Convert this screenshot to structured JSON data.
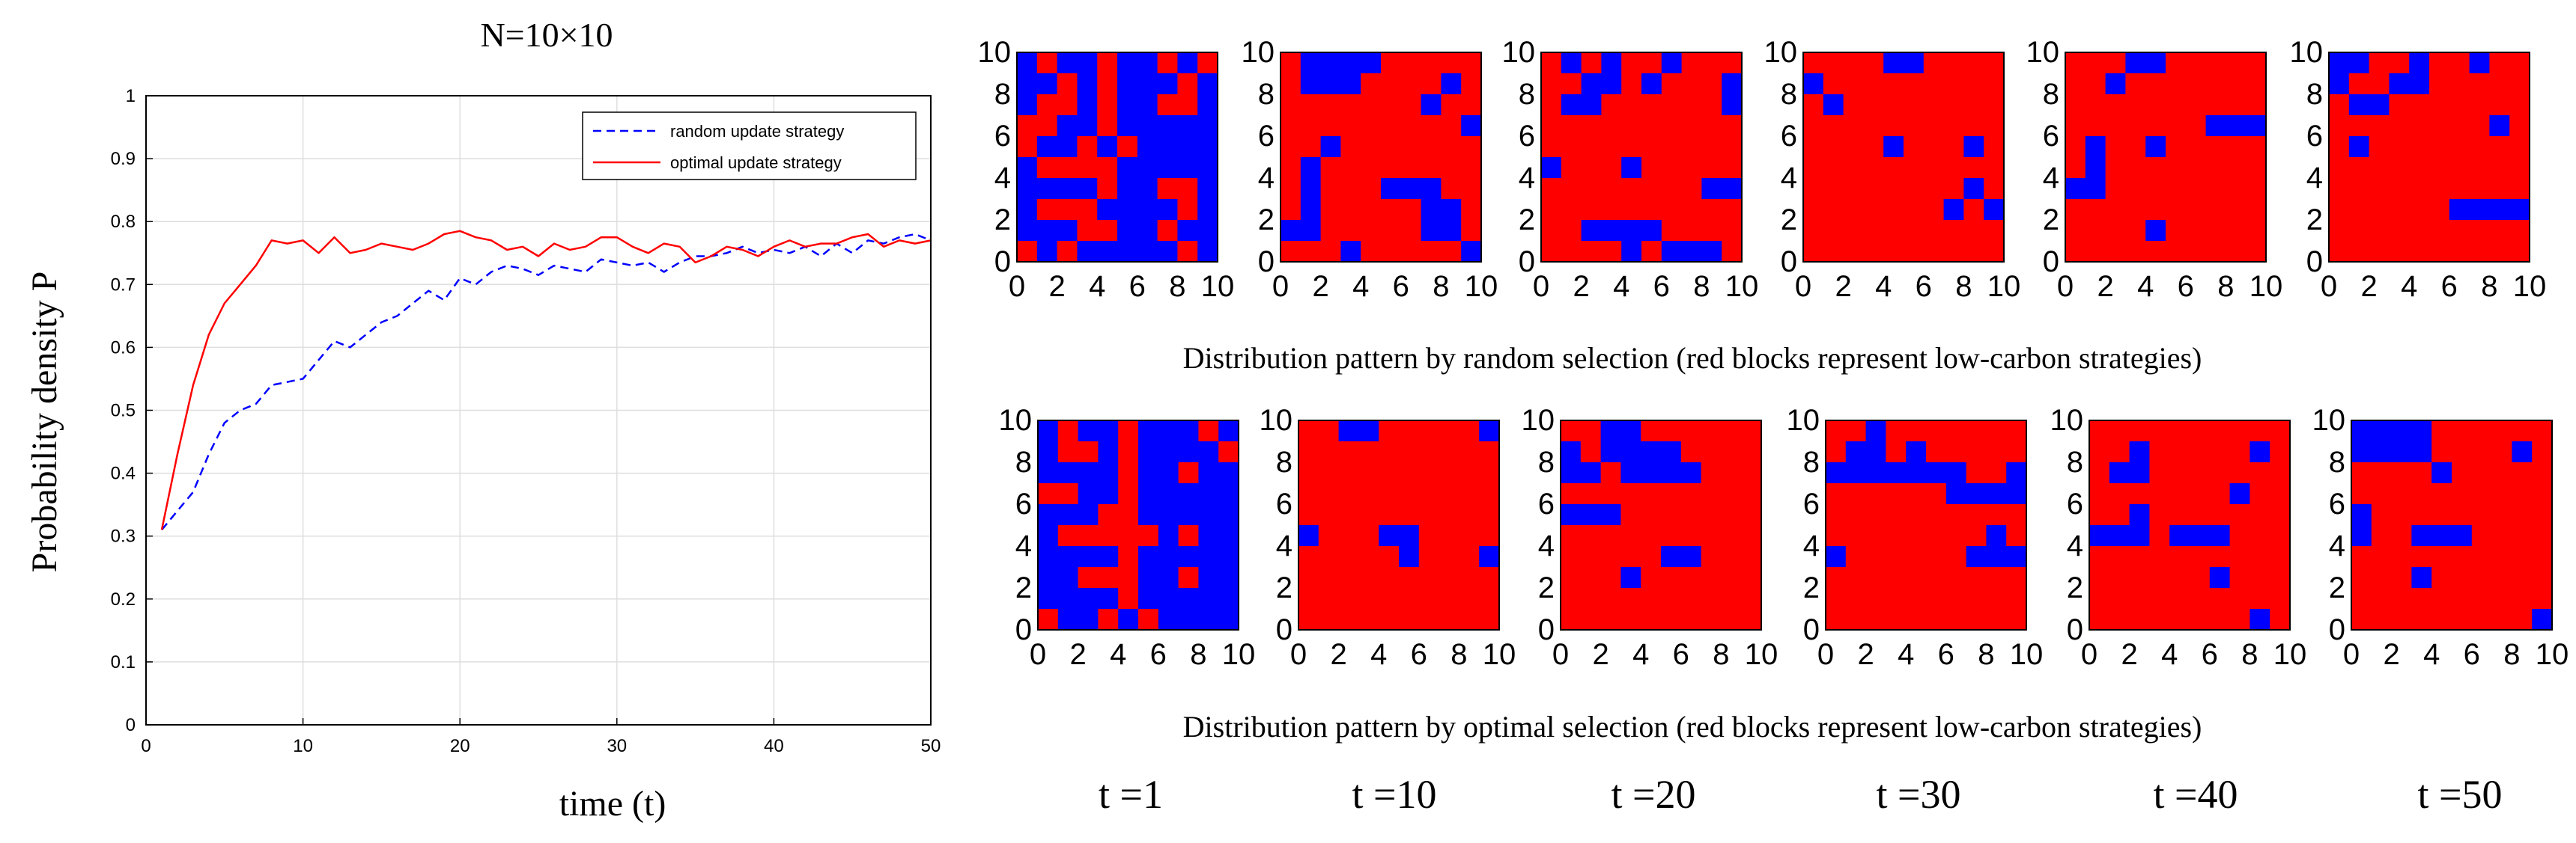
{
  "chart_data": {
    "line_chart": {
      "type": "line",
      "title": "N=10×10",
      "xlabel": "time  (t)",
      "ylabel": "Probability density P",
      "xlim": [
        0,
        50
      ],
      "ylim": [
        0,
        1
      ],
      "xticks": [
        0,
        10,
        20,
        30,
        40,
        50
      ],
      "yticks": [
        0,
        0.1,
        0.2,
        0.3,
        0.4,
        0.5,
        0.6,
        0.7,
        0.8,
        0.9,
        1
      ],
      "ytick_labels": [
        "0",
        "0.1",
        "0.2",
        "0.3",
        "0.4",
        "0.5",
        "0.6",
        "0.7",
        "0.8",
        "0.9",
        "1"
      ],
      "grid": true,
      "legend_position": "top-right",
      "series": [
        {
          "name": "random update strategy",
          "color": "#0000ff",
          "style": "dashed",
          "x": [
            1,
            2,
            3,
            4,
            5,
            6,
            7,
            8,
            9,
            10,
            11,
            12,
            13,
            14,
            15,
            16,
            17,
            18,
            19,
            20,
            21,
            22,
            23,
            24,
            25,
            26,
            27,
            28,
            29,
            30,
            31,
            32,
            33,
            34,
            35,
            36,
            37,
            38,
            39,
            40,
            41,
            42,
            43,
            44,
            45,
            46,
            47,
            48,
            49,
            50
          ],
          "y": [
            0.31,
            0.34,
            0.37,
            0.43,
            0.48,
            0.5,
            0.51,
            0.54,
            0.545,
            0.55,
            0.58,
            0.61,
            0.6,
            0.62,
            0.64,
            0.65,
            0.67,
            0.69,
            0.675,
            0.71,
            0.7,
            0.72,
            0.73,
            0.725,
            0.715,
            0.73,
            0.725,
            0.72,
            0.74,
            0.735,
            0.73,
            0.735,
            0.72,
            0.735,
            0.745,
            0.745,
            0.75,
            0.76,
            0.75,
            0.755,
            0.75,
            0.76,
            0.745,
            0.765,
            0.75,
            0.77,
            0.765,
            0.775,
            0.78,
            0.77
          ]
        },
        {
          "name": "optimal update strategy",
          "color": "#ff0000",
          "style": "solid",
          "x": [
            1,
            2,
            3,
            4,
            5,
            6,
            7,
            8,
            9,
            10,
            11,
            12,
            13,
            14,
            15,
            16,
            17,
            18,
            19,
            20,
            21,
            22,
            23,
            24,
            25,
            26,
            27,
            28,
            29,
            30,
            31,
            32,
            33,
            34,
            35,
            36,
            37,
            38,
            39,
            40,
            41,
            42,
            43,
            44,
            45,
            46,
            47,
            48,
            49,
            50
          ],
          "y": [
            0.31,
            0.43,
            0.54,
            0.62,
            0.67,
            0.7,
            0.73,
            0.77,
            0.765,
            0.77,
            0.75,
            0.775,
            0.75,
            0.755,
            0.765,
            0.76,
            0.755,
            0.765,
            0.78,
            0.785,
            0.775,
            0.77,
            0.755,
            0.76,
            0.745,
            0.765,
            0.755,
            0.76,
            0.775,
            0.775,
            0.76,
            0.75,
            0.765,
            0.76,
            0.735,
            0.745,
            0.76,
            0.755,
            0.745,
            0.76,
            0.77,
            0.76,
            0.765,
            0.765,
            0.775,
            0.78,
            0.76,
            0.77,
            0.765,
            0.77
          ]
        }
      ]
    },
    "heatmaps": {
      "type": "heatmap",
      "grid_size": 10,
      "axis_ticks": [
        "0",
        "2",
        "4",
        "6",
        "8",
        "10"
      ],
      "color_red": "#ff0000",
      "color_blue": "#0000ff",
      "time_labels": [
        "t =1",
        "t =10",
        "t =20",
        "t =30",
        "t =40",
        "t =50"
      ],
      "random_caption": "Distribution pattern by random selection (red blocks represent low-carbon strategies)",
      "optimal_caption": "Distribution pattern by optimal selection (red blocks represent low-carbon strategies)",
      "random": [
        [
          "BRBBRBBRBR",
          "BBRBRBBBRB",
          "BRRBRBBRRB",
          "RRBBRBBBBB",
          "RBBRBRBBBB",
          "BRRRRBBBBB",
          "BBBBRBBRRB",
          "BRRRBBBBRB",
          "BBBRRBBRBB",
          "RBRBBBBBRB"
        ],
        [
          "RBBBBRRRRR",
          "RBBBRRRRBR",
          "RRRRRRRBRR",
          "RRRRRRRRRB",
          "RRBRRRRRRR",
          "RBRRRRRRRR",
          "RBRRRBBBRR",
          "RBRRRRRBBR",
          "BBRRRRRBBR",
          "RRRBRRRRRB"
        ],
        [
          "RBRBRRBRRR",
          "RRBBRBRRRB",
          "RBBRRRRRRB",
          "RRRRRRRRRR",
          "RRRRRRRRRR",
          "BRRRBRRRRR",
          "RRRRRRRRBB",
          "RRRRRRRRRR",
          "RRBBBBRRRR",
          "RRRRBRBBBR"
        ],
        [
          "RRRRBBRRRR",
          "BRRRRRRRRR",
          "RBRRRRRRRR",
          "RRRRRRRRRR",
          "RRRRBRRRBR",
          "RRRRRRRRRR",
          "RRRRRRRRBR",
          "RRRRRRRBRB",
          "RRRRRRRRRR",
          "RRRRRRRRRR"
        ],
        [
          "RRRBBRRRRR",
          "RRBRRRRRRR",
          "RRRRRRRRRR",
          "RRRRRRRBBB",
          "RBRRBRRRRR",
          "RBRRRRRRRR",
          "BBRRRRRRRR",
          "RRRRRRRRRR",
          "RRRRBRRRRR",
          "RRRRRRRRRR"
        ],
        [
          "BBRRBRRBRR",
          "BRRBBRRRRR",
          "RBBRRRRRRR",
          "RRRRRRRRBR",
          "RBRRRRRRRR",
          "RRRRRRRRRR",
          "RRRRRRRRRR",
          "RRRRRRBBBB",
          "RRRRRRRRRR",
          "RRRRRRRRRR"
        ]
      ],
      "optimal": [
        [
          "BRBBRBBBRB",
          "BRRBRBBBBR",
          "BBBBRBBRBB",
          "RRBBRBBBBB",
          "BBBRRBBBBB",
          "BRRRRRBRBB",
          "BBBBRBBBBB",
          "BBRRRBBRBB",
          "BBBBRBBBBB",
          "RBBRBRBBBB"
        ],
        [
          "RRBBRRRRRB",
          "RRRRRRRRRR",
          "RRRRRRRRRR",
          "RRRRRRRRRR",
          "RRRRRRRRRR",
          "BRRRBBRRRR",
          "RRRRRBRRRB",
          "RRRRRRRRRR",
          "RRRRRRRRRR",
          "RRRRRRRRRR"
        ],
        [
          "RRBBRRRRRR",
          "BRBBBBRRRR",
          "BBRBBBBRRR",
          "RRRRRRRRRR",
          "BBBRRRRRRR",
          "RRRRRRRRRR",
          "RRRRRBBRRR",
          "RRRBRRRRRR",
          "RRRRRRRRRR",
          "RRRRRRRRRR"
        ],
        [
          "RRBRRRRRRR",
          "RBBRBRRRRR",
          "BBBBBBBRRB",
          "RRRRRRBBBB",
          "RRRRRRRRRR",
          "RRRRRRRRBR",
          "BRRRRRRBBB",
          "RRRRRRRRRR",
          "RRRRRRRRRR",
          "RRRRRRRRRR"
        ],
        [
          "RRRRRRRRRR",
          "RRBRRRRRBR",
          "RBBRRRRRRR",
          "RRRRRRRBRR",
          "RRBRRRRRRR",
          "BBBRBBBRRR",
          "RRRRRRRRRR",
          "RRRRRRBRRR",
          "RRRRRRRRRR",
          "RRRRRRRRBR"
        ],
        [
          "BBBBRRRRRR",
          "BBBBRRRRBR",
          "RRRRBRRRRR",
          "RRRRRRRRRR",
          "BRRRRRRRRR",
          "BRRBBBRRRR",
          "RRRRRRRRRR",
          "RRRBRRRRRR",
          "RRRRRRRRRR",
          "RRRRRRRRRB"
        ]
      ]
    }
  }
}
